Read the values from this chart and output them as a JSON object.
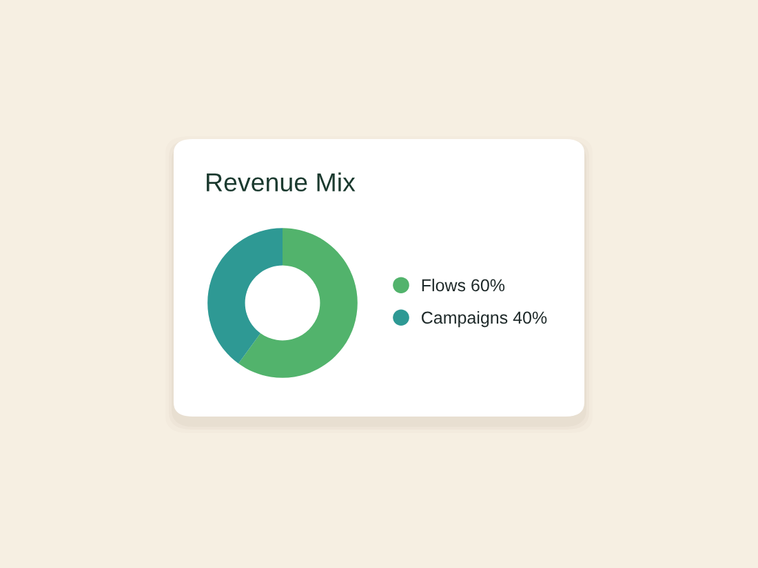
{
  "chart_data": {
    "type": "donut",
    "title": "Revenue Mix",
    "categories": [
      "Flows",
      "Campaigns"
    ],
    "values": [
      60,
      40
    ],
    "colors": [
      "#52b36c",
      "#2e9994"
    ],
    "value_labels": [
      "60%",
      "40%"
    ],
    "legend": "right"
  }
}
